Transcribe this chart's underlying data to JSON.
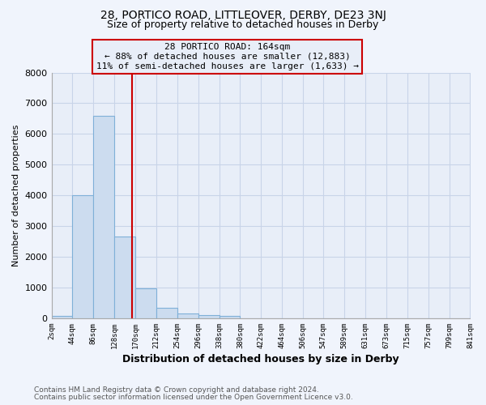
{
  "title_line1": "28, PORTICO ROAD, LITTLEOVER, DERBY, DE23 3NJ",
  "title_line2": "Size of property relative to detached houses in Derby",
  "xlabel": "Distribution of detached houses by size in Derby",
  "ylabel": "Number of detached properties",
  "property_label": "28 PORTICO ROAD: 164sqm",
  "annotation_line2": "← 88% of detached houses are smaller (12,883)",
  "annotation_line3": "11% of semi-detached houses are larger (1,633) →",
  "bin_edges": [
    2,
    44,
    86,
    128,
    170,
    212,
    254,
    296,
    338,
    380,
    422,
    464,
    506,
    547,
    589,
    631,
    673,
    715,
    757,
    799,
    841
  ],
  "bar_heights": [
    75,
    4000,
    6600,
    2650,
    970,
    330,
    150,
    100,
    80,
    0,
    0,
    0,
    0,
    0,
    0,
    0,
    0,
    0,
    0,
    0
  ],
  "bar_color": "#ccdcef",
  "bar_edge_color": "#7fb0d8",
  "vline_x": 164,
  "vline_color": "#cc0000",
  "ylim": [
    0,
    8000
  ],
  "yticks": [
    0,
    1000,
    2000,
    3000,
    4000,
    5000,
    6000,
    7000,
    8000
  ],
  "grid_color": "#c8d4e8",
  "plot_bg_color": "#e8eef8",
  "fig_bg_color": "#f0f4fc",
  "footer_line1": "Contains HM Land Registry data © Crown copyright and database right 2024.",
  "footer_line2": "Contains public sector information licensed under the Open Government Licence v3.0.",
  "box_edge_color": "#cc0000",
  "box_bg_color": "#e8eef8"
}
